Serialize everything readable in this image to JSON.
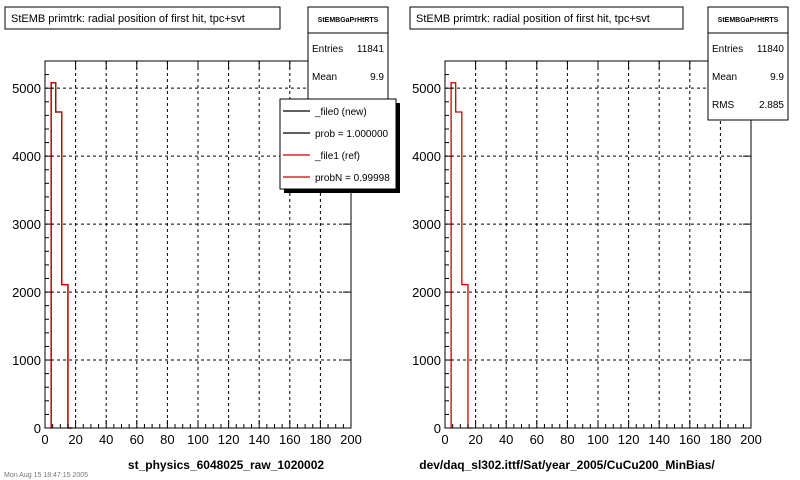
{
  "footer_text": "Mon Aug 15 18:47:15 2005",
  "chart_data": [
    {
      "type": "histogram",
      "title": "StEMB primtrk: radial position of first hit, tpc+svt",
      "xlabel": "st_physics_6048025_raw_1020002",
      "xlim": [
        0,
        200
      ],
      "ylim": [
        0,
        5400
      ],
      "xticks": [
        0,
        20,
        40,
        60,
        80,
        100,
        120,
        140,
        160,
        180,
        200
      ],
      "yticks": [
        0,
        1000,
        2000,
        3000,
        4000,
        5000
      ],
      "grid": true,
      "stats": {
        "header": "StEMBGaPrHtRTS",
        "entries_label": "Entries",
        "entries": "11841",
        "mean_label": "Mean",
        "mean": "9.9"
      },
      "legend": {
        "placement": "top-right",
        "entries": [
          {
            "label": "_file0 (new)",
            "color": "#000000"
          },
          {
            "label": "prob = 1.000000",
            "color": "#000000"
          },
          {
            "label": "_file1 (ref)",
            "color": "#cc0000"
          },
          {
            "label": "probN = 0.99998",
            "color": "#cc0000"
          }
        ]
      },
      "series": [
        {
          "color": "#000000",
          "bin_edges": [
            4,
            7,
            11,
            15,
            18
          ],
          "values": [
            5080,
            4650,
            2110,
            0
          ]
        },
        {
          "color": "#cc0000",
          "bin_edges": [
            4,
            7,
            11,
            15,
            18
          ],
          "values": [
            5080,
            4650,
            2110,
            0
          ]
        }
      ]
    },
    {
      "type": "histogram",
      "title": "StEMB primtrk: radial position of first hit, tpc+svt",
      "xlabel": "dev/daq_sl302.ittf/Sat/year_2005/CuCu200_MinBias/",
      "xlim": [
        0,
        200
      ],
      "ylim": [
        0,
        5400
      ],
      "xticks": [
        0,
        20,
        40,
        60,
        80,
        100,
        120,
        140,
        160,
        180,
        200
      ],
      "yticks": [
        0,
        1000,
        2000,
        3000,
        4000,
        5000
      ],
      "grid": true,
      "stats": {
        "header": "StEMBGaPrHtRTS",
        "entries_label": "Entries",
        "entries": "11840",
        "mean_label": "Mean",
        "mean": "9.9",
        "rms_label": "RMS",
        "rms": "2.885"
      },
      "series": [
        {
          "color": "#cc0000",
          "bin_edges": [
            4,
            7,
            11,
            15,
            18
          ],
          "values": [
            5080,
            4650,
            2110,
            0
          ]
        }
      ]
    }
  ]
}
